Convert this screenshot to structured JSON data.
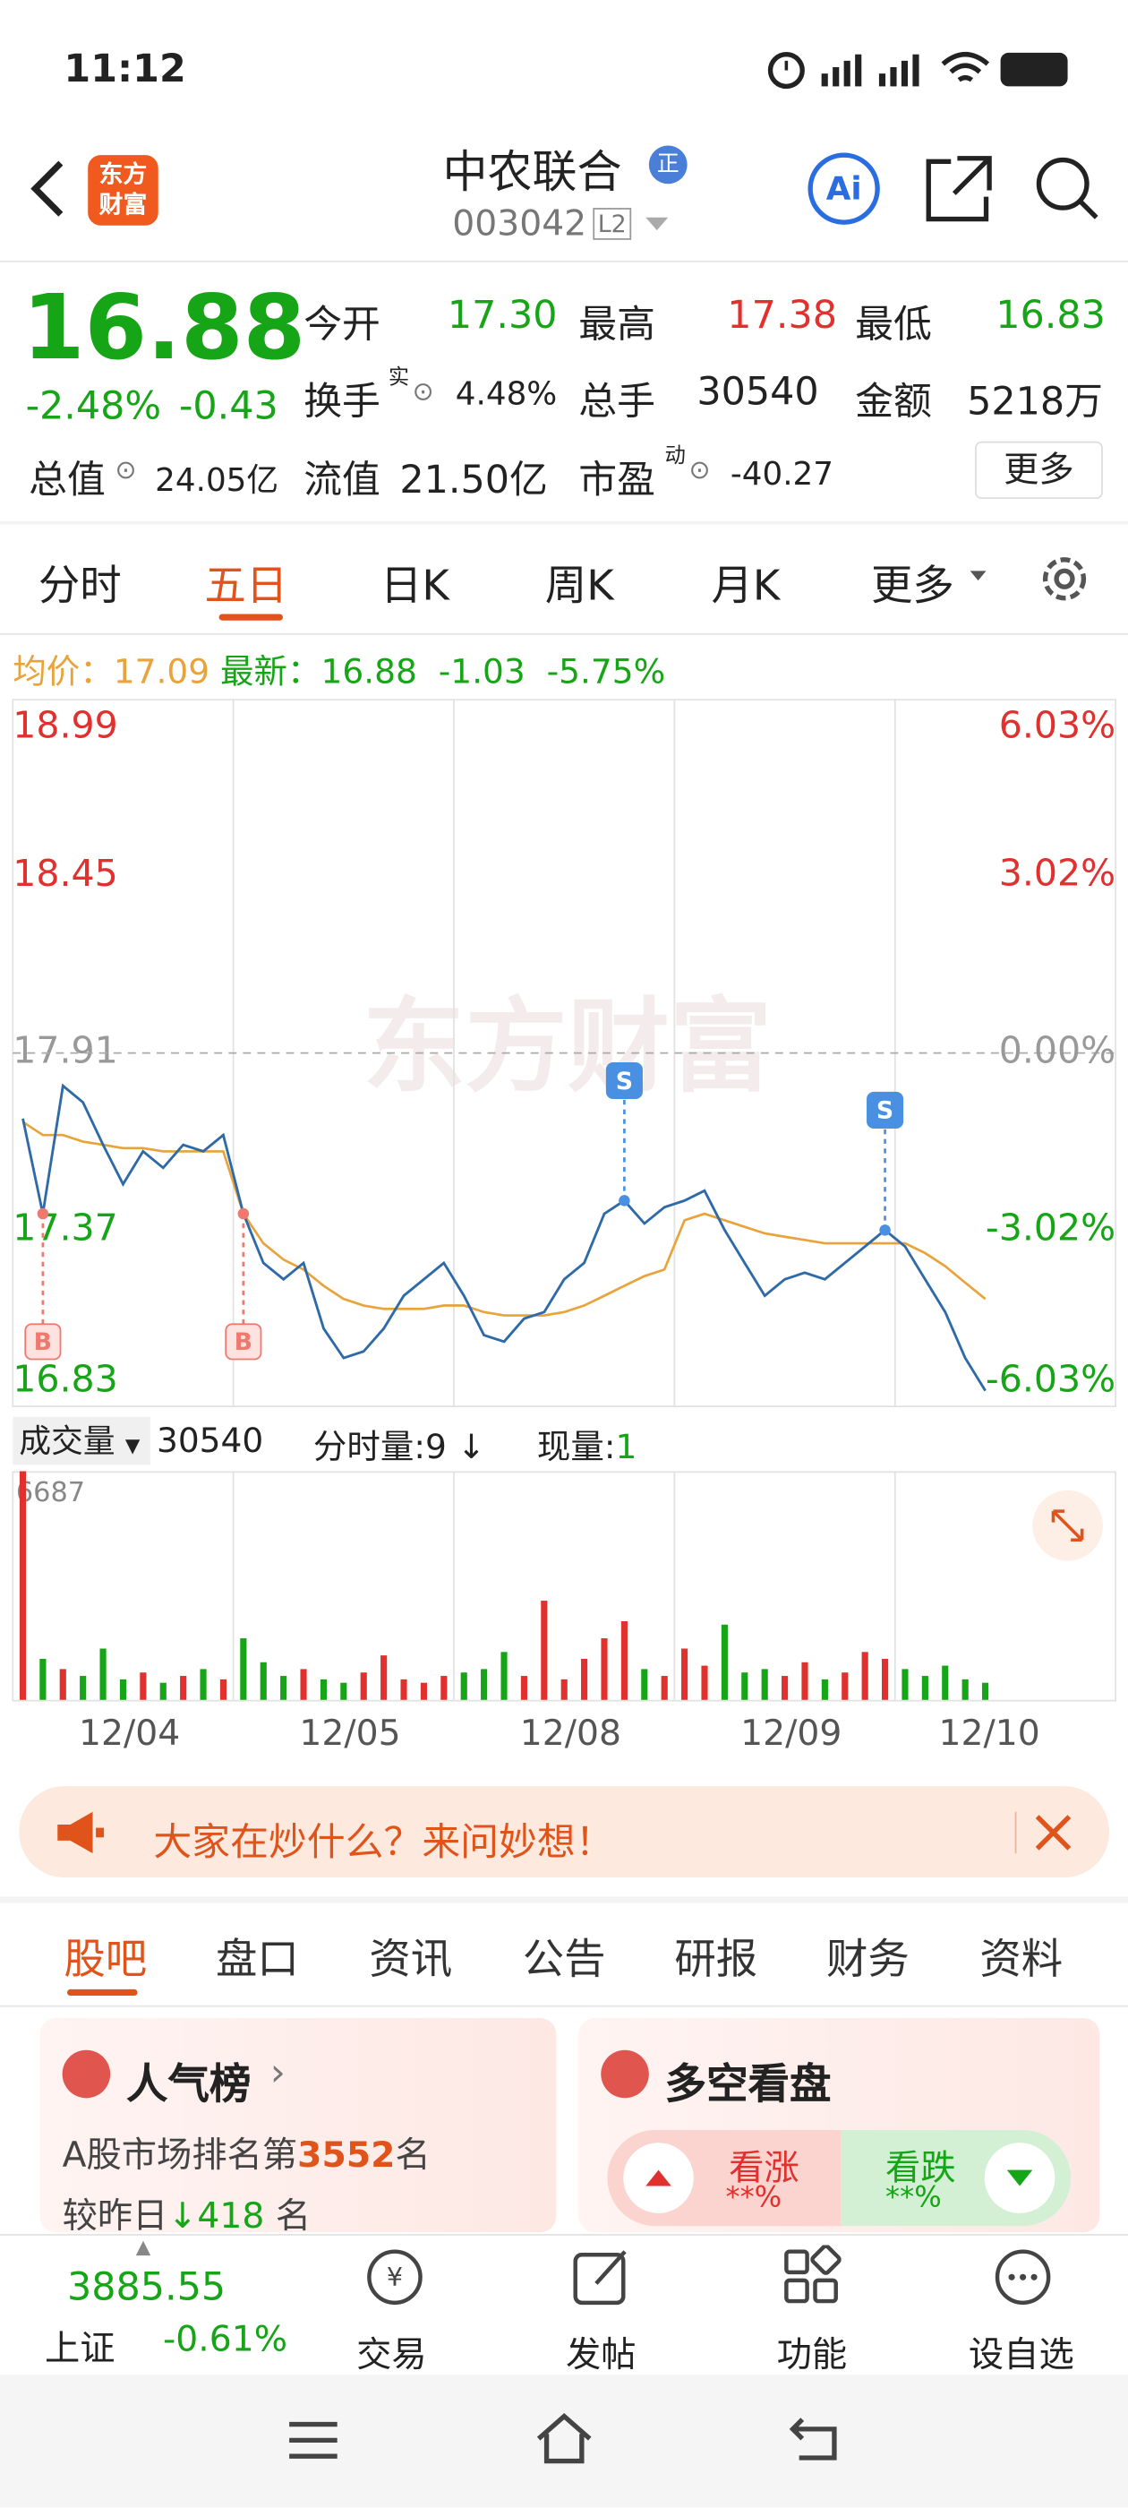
{
  "status_bar": {
    "time": "11:12"
  },
  "header": {
    "logo": [
      "东方",
      "财富"
    ],
    "name": "中农联合",
    "badge": "正",
    "code": "003042",
    "level": "L2"
  },
  "quote": {
    "price": "16.88",
    "change_pct": "-2.48%",
    "change": "-0.43",
    "open": {
      "label": "今开",
      "value": "17.30"
    },
    "high": {
      "label": "最高",
      "value": "17.38"
    },
    "low": {
      "label": "最低",
      "value": "16.83"
    },
    "turnover": {
      "label": "换手",
      "sup": "实",
      "value": "4.48%"
    },
    "volume": {
      "label": "总手",
      "value": "30540"
    },
    "amount": {
      "label": "金额",
      "value": "5218万"
    },
    "market_cap": {
      "label": "总值",
      "value": "24.05亿"
    },
    "float_cap": {
      "label": "流值",
      "value": "21.50亿"
    },
    "pe": {
      "label": "市盈",
      "sup": "动",
      "value": "-40.27"
    },
    "more": "更多"
  },
  "chart_tabs": [
    "分时",
    "五日",
    "日K",
    "周K",
    "月K",
    "更多"
  ],
  "chart_data": {
    "type": "line",
    "info": {
      "avg_label": "均价：",
      "avg": "17.09",
      "last_label": "最新：",
      "last": "16.88",
      "change": "-1.03",
      "change_pct": "-5.75%"
    },
    "watermark": "东方财富",
    "ylim": [
      16.83,
      18.99
    ],
    "yticks": [
      16.83,
      17.37,
      17.91,
      18.45,
      18.99
    ],
    "y2lim": [
      -6.03,
      6.03
    ],
    "y2ticks": [
      {
        "value": -6.03,
        "label": "-6.03%"
      },
      {
        "value": -3.02,
        "label": "-3.02%"
      },
      {
        "value": 0,
        "label": "0.00%"
      },
      {
        "value": 3.02,
        "label": "3.02%"
      },
      {
        "value": 6.03,
        "label": "6.03%"
      }
    ],
    "price": {
      "color": "#2f6aa8",
      "values": [
        17.71,
        17.42,
        17.81,
        17.76,
        17.63,
        17.51,
        17.61,
        17.56,
        17.63,
        17.61,
        17.66,
        17.42,
        17.27,
        17.22,
        17.27,
        17.07,
        16.98,
        17.0,
        17.07,
        17.17,
        17.22,
        17.27,
        17.17,
        17.05,
        17.03,
        17.1,
        17.12,
        17.22,
        17.27,
        17.42,
        17.46,
        17.39,
        17.44,
        17.46,
        17.49,
        17.37,
        17.27,
        17.17,
        17.22,
        17.24,
        17.22,
        17.27,
        17.32,
        17.37,
        17.32,
        17.22,
        17.12,
        16.98,
        16.88
      ]
    },
    "average": {
      "color": "#e8a33a",
      "values": [
        17.7,
        17.66,
        17.66,
        17.64,
        17.63,
        17.62,
        17.62,
        17.61,
        17.61,
        17.61,
        17.61,
        17.42,
        17.33,
        17.28,
        17.25,
        17.2,
        17.16,
        17.14,
        17.13,
        17.13,
        17.13,
        17.14,
        17.14,
        17.12,
        17.11,
        17.11,
        17.11,
        17.12,
        17.14,
        17.17,
        17.2,
        17.23,
        17.25,
        17.4,
        17.42,
        17.4,
        17.38,
        17.36,
        17.35,
        17.34,
        17.33,
        17.33,
        17.33,
        17.33,
        17.33,
        17.3,
        17.26,
        17.21,
        17.16
      ]
    },
    "markers": [
      "B",
      "B",
      "S",
      "S"
    ],
    "up_color": "#e0312f",
    "down_color": "#16a516",
    "volume_header": {
      "label": "成交量",
      "total": "30540",
      "tick_label": "分时量:9",
      "arrow": "↓",
      "now_label": "现量:",
      "now": "1"
    },
    "volume": {
      "ylim": [
        0,
        6687
      ],
      "yticks": [
        6687
      ],
      "values": [
        6687,
        1200,
        900,
        700,
        1500,
        600,
        800,
        500,
        700,
        900,
        600,
        1800,
        1100,
        700,
        900,
        600,
        500,
        800,
        1300,
        600,
        500,
        700,
        800,
        900,
        1400,
        700,
        2900,
        600,
        1200,
        1800,
        2300,
        900,
        700,
        1500,
        1000,
        2200,
        800,
        900,
        700,
        1100,
        600,
        800,
        1400,
        1200,
        900,
        700,
        1000,
        600,
        500
      ]
    },
    "dates": [
      "12/04",
      "12/05",
      "12/08",
      "12/09",
      "12/10"
    ]
  },
  "banner": "大家在炒什么？来问妙想！",
  "sections": [
    "股吧",
    "盘口",
    "资讯",
    "公告",
    "研报",
    "财务",
    "资料"
  ],
  "popularity": {
    "title": "人气榜",
    "rank_prefix": "A股市场排名第",
    "rank": "3552",
    "rank_suffix": "名",
    "change_prefix": "较昨日",
    "change": "418",
    "change_suffix": "名"
  },
  "sentiment": {
    "title": "多空看盘",
    "bull": "看涨",
    "bull_pct": "**%",
    "bear": "看跌",
    "bear_pct": "**%"
  },
  "bottom_bar": {
    "index_value": "3885.55",
    "index_name": "上证",
    "index_change": "-0.61%",
    "items": [
      "交易",
      "发帖",
      "功能",
      "设自选"
    ]
  }
}
